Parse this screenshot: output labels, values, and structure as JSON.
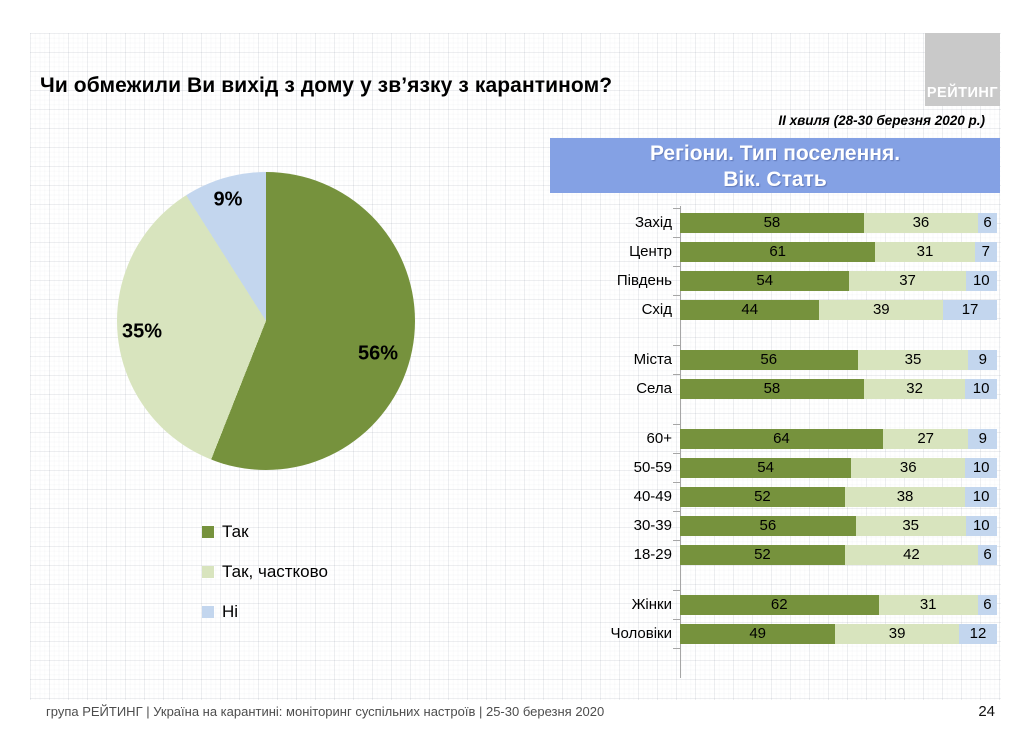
{
  "slide": {
    "title": "Чи обмежили Ви вихід з дому у зв’язку з карантином?",
    "wave_note": "ІІ хвиля (28-30 березня 2020 р.)",
    "section_header_line1": "Регіони. Тип поселення.",
    "section_header_line2": "Вік. Стать",
    "logo_text": "РЕЙТИНГ",
    "footer_text": "група РЕЙТИНГ  |  Україна на карантині: моніторинг суспільних настроїв  |  25-30 березня 2020",
    "page_number": "24"
  },
  "colors": {
    "dark_green": "#76923D",
    "light_green": "#D8E4BE",
    "light_blue": "#C3D6EE",
    "header_blue": "#84A1E4",
    "logo_gray": "#C9C9C9",
    "axis_gray": "#A6A6A6",
    "footer_gray": "#4D4D4D"
  },
  "chart_data": [
    {
      "type": "pie",
      "title": "Чи обмежили Ви вихід з дому у зв’язку з карантином?",
      "labels": [
        "Так",
        "Так, частково",
        "Ні"
      ],
      "values": [
        56,
        35,
        9
      ],
      "value_labels": [
        "56%",
        "35%",
        "9%"
      ],
      "colors": [
        "#76923D",
        "#D8E4BE",
        "#C3D6EE"
      ],
      "start_angle_deg": 0,
      "direction": "clockwise",
      "legend_position": "below-left"
    },
    {
      "type": "bar",
      "stacked": true,
      "orientation": "horizontal",
      "title": "Регіони. Тип поселення. Вік. Стать",
      "series": [
        "Так",
        "Так, частково",
        "Ні"
      ],
      "colors": [
        "#76923D",
        "#D8E4BE",
        "#C3D6EE"
      ],
      "xlim": [
        0,
        100
      ],
      "grid": false,
      "groups": [
        {
          "name": "регіони",
          "rows": [
            {
              "label": "Захід",
              "values": [
                58,
                36,
                6
              ]
            },
            {
              "label": "Центр",
              "values": [
                61,
                31,
                7
              ]
            },
            {
              "label": "Південь",
              "values": [
                54,
                37,
                10
              ]
            },
            {
              "label": "Схід",
              "values": [
                44,
                39,
                17
              ]
            }
          ]
        },
        {
          "name": "тип поселення",
          "rows": [
            {
              "label": "Міста",
              "values": [
                56,
                35,
                9
              ]
            },
            {
              "label": "Села",
              "values": [
                58,
                32,
                10
              ]
            }
          ]
        },
        {
          "name": "вік",
          "rows": [
            {
              "label": "60+",
              "values": [
                64,
                27,
                9
              ]
            },
            {
              "label": "50-59",
              "values": [
                54,
                36,
                10
              ]
            },
            {
              "label": "40-49",
              "values": [
                52,
                38,
                10
              ]
            },
            {
              "label": "30-39",
              "values": [
                56,
                35,
                10
              ]
            },
            {
              "label": "18-29",
              "values": [
                52,
                42,
                6
              ]
            }
          ]
        },
        {
          "name": "стать",
          "rows": [
            {
              "label": "Жінки",
              "values": [
                62,
                31,
                6
              ]
            },
            {
              "label": "Чоловіки",
              "values": [
                49,
                39,
                12
              ]
            }
          ]
        }
      ]
    }
  ]
}
